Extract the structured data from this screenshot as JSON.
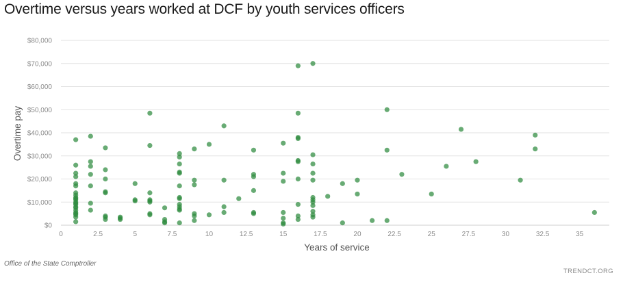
{
  "chart_data": {
    "type": "scatter",
    "title": "Overtime versus years worked at DCF by youth services officers",
    "xlabel": "Years of service",
    "ylabel": "Overtime pay",
    "xlim": [
      0,
      37
    ],
    "ylim": [
      0,
      80000
    ],
    "x_ticks": [
      0,
      2.5,
      5,
      7.5,
      10,
      12.5,
      15,
      17.5,
      20,
      22.5,
      25,
      27.5,
      30,
      32.5,
      35
    ],
    "x_tick_labels": [
      "0",
      "2.5",
      "5",
      "7.5",
      "10",
      "12.5",
      "15",
      "17.5",
      "20",
      "22.5",
      "25",
      "27.5",
      "30",
      "32.5",
      "35"
    ],
    "y_ticks": [
      0,
      10000,
      20000,
      30000,
      40000,
      50000,
      60000,
      70000,
      80000
    ],
    "y_tick_labels": [
      "$0",
      "$10,000",
      "$20,000",
      "$30,000",
      "$40,000",
      "$50,000",
      "$60,000",
      "$70,000",
      "$80,000"
    ],
    "grid": "horizontal",
    "marker_color": "#2e8b3e",
    "series": [
      {
        "name": "Youth services officers",
        "points": [
          [
            1,
            37000
          ],
          [
            1,
            26000
          ],
          [
            1,
            22500
          ],
          [
            1,
            21000
          ],
          [
            1,
            18000
          ],
          [
            1,
            17000
          ],
          [
            1,
            14000
          ],
          [
            1,
            13000
          ],
          [
            1,
            12000
          ],
          [
            1,
            11500
          ],
          [
            1,
            11000
          ],
          [
            1,
            10000
          ],
          [
            1,
            9500
          ],
          [
            1,
            9000
          ],
          [
            1,
            8000
          ],
          [
            1,
            7500
          ],
          [
            1,
            6500
          ],
          [
            1,
            5500
          ],
          [
            1,
            5000
          ],
          [
            1,
            4500
          ],
          [
            1,
            3500
          ],
          [
            1,
            1500
          ],
          [
            2,
            38500
          ],
          [
            2,
            27500
          ],
          [
            2,
            25500
          ],
          [
            2,
            22000
          ],
          [
            2,
            17000
          ],
          [
            2,
            9500
          ],
          [
            2,
            6500
          ],
          [
            3,
            33500
          ],
          [
            3,
            24000
          ],
          [
            3,
            20000
          ],
          [
            3,
            14500
          ],
          [
            3,
            14000
          ],
          [
            3,
            4000
          ],
          [
            3,
            3500
          ],
          [
            3,
            2500
          ],
          [
            4,
            3500
          ],
          [
            4,
            3000
          ],
          [
            4,
            2500
          ],
          [
            5,
            18000
          ],
          [
            5,
            11000
          ],
          [
            5,
            10500
          ],
          [
            6,
            48500
          ],
          [
            6,
            34500
          ],
          [
            6,
            14000
          ],
          [
            6,
            11000
          ],
          [
            6,
            10500
          ],
          [
            6,
            10000
          ],
          [
            6,
            5000
          ],
          [
            6,
            4500
          ],
          [
            7,
            7500
          ],
          [
            7,
            2500
          ],
          [
            7,
            1500
          ],
          [
            7,
            1000
          ],
          [
            8,
            31000
          ],
          [
            8,
            29500
          ],
          [
            8,
            26500
          ],
          [
            8,
            23000
          ],
          [
            8,
            22500
          ],
          [
            8,
            17000
          ],
          [
            8,
            12000
          ],
          [
            8,
            11500
          ],
          [
            8,
            9000
          ],
          [
            8,
            8000
          ],
          [
            8,
            7000
          ],
          [
            8,
            6500
          ],
          [
            8,
            1000
          ],
          [
            9,
            33000
          ],
          [
            9,
            19500
          ],
          [
            9,
            17500
          ],
          [
            9,
            5000
          ],
          [
            9,
            4000
          ],
          [
            9,
            2000
          ],
          [
            10,
            35000
          ],
          [
            10,
            4500
          ],
          [
            11,
            43000
          ],
          [
            11,
            19500
          ],
          [
            11,
            8000
          ],
          [
            11,
            5500
          ],
          [
            12,
            11500
          ],
          [
            13,
            32500
          ],
          [
            13,
            22000
          ],
          [
            13,
            21000
          ],
          [
            13,
            15000
          ],
          [
            13,
            5500
          ],
          [
            13,
            5000
          ],
          [
            15,
            35500
          ],
          [
            15,
            22500
          ],
          [
            15,
            19000
          ],
          [
            15,
            5500
          ],
          [
            15,
            3000
          ],
          [
            15,
            1000
          ],
          [
            15,
            500
          ],
          [
            16,
            69000
          ],
          [
            16,
            48500
          ],
          [
            16,
            38000
          ],
          [
            16,
            37500
          ],
          [
            16,
            28000
          ],
          [
            16,
            27500
          ],
          [
            16,
            20000
          ],
          [
            16,
            9000
          ],
          [
            16,
            4000
          ],
          [
            16,
            2500
          ],
          [
            17,
            70000
          ],
          [
            17,
            30500
          ],
          [
            17,
            26500
          ],
          [
            17,
            22500
          ],
          [
            17,
            19500
          ],
          [
            17,
            12000
          ],
          [
            17,
            11000
          ],
          [
            17,
            10000
          ],
          [
            17,
            8500
          ],
          [
            17,
            6000
          ],
          [
            17,
            4500
          ],
          [
            17,
            3500
          ],
          [
            18,
            12500
          ],
          [
            19,
            18000
          ],
          [
            19,
            1000
          ],
          [
            20,
            19500
          ],
          [
            20,
            13500
          ],
          [
            21,
            2000
          ],
          [
            22,
            50000
          ],
          [
            22,
            32500
          ],
          [
            22,
            2000
          ],
          [
            23,
            22000
          ],
          [
            25,
            13500
          ],
          [
            26,
            25500
          ],
          [
            27,
            41500
          ],
          [
            28,
            27500
          ],
          [
            31,
            19500
          ],
          [
            32,
            39000
          ],
          [
            32,
            33000
          ],
          [
            36,
            5500
          ]
        ]
      }
    ]
  },
  "footer": {
    "source": "Office of the State Comptroller",
    "brand": "TRENDCT.ORG"
  }
}
